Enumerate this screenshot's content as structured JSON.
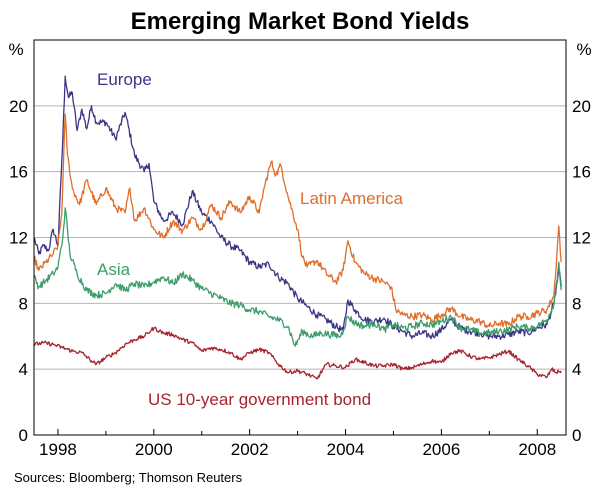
{
  "chart_data": {
    "type": "line",
    "title": "Emerging Market Bond Yields",
    "y_unit_left": "%",
    "y_unit_right": "%",
    "ylim": [
      0,
      24
    ],
    "yticks": [
      "0",
      "4",
      "8",
      "12",
      "16",
      "20"
    ],
    "xlim": [
      1997.5,
      2008.6
    ],
    "xticks": [
      {
        "value": 1998,
        "label": "1998"
      },
      {
        "value": 2000,
        "label": "2000"
      },
      {
        "value": 2002,
        "label": "2002"
      },
      {
        "value": 2004,
        "label": "2004"
      },
      {
        "value": 2006,
        "label": "2006"
      },
      {
        "value": 2008,
        "label": "2008"
      }
    ],
    "source": "Sources: Bloomberg; Thomson Reuters",
    "series": [
      {
        "name": "Europe",
        "color": "#3b3585",
        "points": [
          [
            1997.5,
            12.0
          ],
          [
            1997.6,
            11.0
          ],
          [
            1997.7,
            11.5
          ],
          [
            1997.8,
            11.2
          ],
          [
            1997.9,
            12.5
          ],
          [
            1998.0,
            11.5
          ],
          [
            1998.1,
            18.0
          ],
          [
            1998.15,
            21.8
          ],
          [
            1998.22,
            20.5
          ],
          [
            1998.3,
            20.8
          ],
          [
            1998.4,
            18.5
          ],
          [
            1998.5,
            19.8
          ],
          [
            1998.6,
            18.6
          ],
          [
            1998.7,
            20.0
          ],
          [
            1998.8,
            19.0
          ],
          [
            1999.0,
            19.0
          ],
          [
            1999.2,
            18.0
          ],
          [
            1999.4,
            19.6
          ],
          [
            1999.6,
            17.0
          ],
          [
            1999.8,
            16.0
          ],
          [
            1999.9,
            16.5
          ],
          [
            2000.0,
            14.2
          ],
          [
            2000.2,
            13.0
          ],
          [
            2000.4,
            13.5
          ],
          [
            2000.6,
            12.8
          ],
          [
            2000.8,
            14.8
          ],
          [
            2001.0,
            13.5
          ],
          [
            2001.2,
            13.0
          ],
          [
            2001.4,
            12.0
          ],
          [
            2001.6,
            11.5
          ],
          [
            2001.8,
            11.2
          ],
          [
            2002.0,
            10.5
          ],
          [
            2002.2,
            10.2
          ],
          [
            2002.4,
            10.4
          ],
          [
            2002.6,
            9.6
          ],
          [
            2002.8,
            9.2
          ],
          [
            2003.0,
            8.3
          ],
          [
            2003.2,
            7.8
          ],
          [
            2003.4,
            7.3
          ],
          [
            2003.6,
            7.0
          ],
          [
            2003.8,
            6.6
          ],
          [
            2003.95,
            6.3
          ],
          [
            2004.05,
            8.2
          ],
          [
            2004.2,
            7.6
          ],
          [
            2004.4,
            7.0
          ],
          [
            2004.6,
            6.9
          ],
          [
            2004.8,
            7.1
          ],
          [
            2005.0,
            6.6
          ],
          [
            2005.2,
            6.3
          ],
          [
            2005.4,
            6.0
          ],
          [
            2005.6,
            6.2
          ],
          [
            2005.8,
            6.0
          ],
          [
            2006.0,
            6.4
          ],
          [
            2006.2,
            7.0
          ],
          [
            2006.4,
            6.5
          ],
          [
            2006.6,
            6.3
          ],
          [
            2006.8,
            6.2
          ],
          [
            2007.0,
            6.0
          ],
          [
            2007.2,
            6.0
          ],
          [
            2007.4,
            6.1
          ],
          [
            2007.6,
            6.3
          ],
          [
            2007.8,
            6.2
          ],
          [
            2008.0,
            6.5
          ],
          [
            2008.2,
            6.7
          ],
          [
            2008.35,
            8.0
          ],
          [
            2008.45,
            10.0
          ],
          [
            2008.5,
            9.0
          ]
        ]
      },
      {
        "name": "Latin America",
        "color": "#e06e2c",
        "points": [
          [
            1997.5,
            10.8
          ],
          [
            1997.6,
            10.0
          ],
          [
            1997.75,
            10.5
          ],
          [
            1997.9,
            11.0
          ],
          [
            1998.0,
            11.5
          ],
          [
            1998.08,
            13.5
          ],
          [
            1998.15,
            19.5
          ],
          [
            1998.2,
            17.0
          ],
          [
            1998.3,
            15.0
          ],
          [
            1998.45,
            14.0
          ],
          [
            1998.6,
            15.5
          ],
          [
            1998.8,
            14.0
          ],
          [
            1999.0,
            15.0
          ],
          [
            1999.2,
            13.8
          ],
          [
            1999.4,
            13.5
          ],
          [
            1999.5,
            15.0
          ],
          [
            1999.6,
            13.0
          ],
          [
            1999.8,
            13.8
          ],
          [
            2000.0,
            12.5
          ],
          [
            2000.2,
            12.0
          ],
          [
            2000.4,
            13.0
          ],
          [
            2000.6,
            12.4
          ],
          [
            2000.8,
            13.2
          ],
          [
            2001.0,
            12.5
          ],
          [
            2001.2,
            14.0
          ],
          [
            2001.4,
            13.2
          ],
          [
            2001.6,
            14.2
          ],
          [
            2001.8,
            13.5
          ],
          [
            2002.0,
            14.5
          ],
          [
            2002.2,
            13.5
          ],
          [
            2002.3,
            15.0
          ],
          [
            2002.45,
            16.6
          ],
          [
            2002.55,
            15.8
          ],
          [
            2002.65,
            16.4
          ],
          [
            2002.8,
            14.5
          ],
          [
            2003.0,
            12.5
          ],
          [
            2003.1,
            10.8
          ],
          [
            2003.2,
            10.2
          ],
          [
            2003.4,
            10.6
          ],
          [
            2003.6,
            9.8
          ],
          [
            2003.8,
            9.3
          ],
          [
            2003.95,
            10.0
          ],
          [
            2004.05,
            11.8
          ],
          [
            2004.2,
            10.5
          ],
          [
            2004.4,
            9.8
          ],
          [
            2004.6,
            9.5
          ],
          [
            2004.8,
            9.3
          ],
          [
            2004.95,
            9.0
          ],
          [
            2005.05,
            7.6
          ],
          [
            2005.2,
            7.3
          ],
          [
            2005.4,
            7.2
          ],
          [
            2005.6,
            7.3
          ],
          [
            2005.8,
            7.0
          ],
          [
            2006.0,
            7.3
          ],
          [
            2006.2,
            7.7
          ],
          [
            2006.4,
            7.2
          ],
          [
            2006.6,
            7.0
          ],
          [
            2006.8,
            6.9
          ],
          [
            2007.0,
            6.6
          ],
          [
            2007.2,
            6.8
          ],
          [
            2007.4,
            6.7
          ],
          [
            2007.6,
            7.2
          ],
          [
            2007.8,
            7.2
          ],
          [
            2008.0,
            7.4
          ],
          [
            2008.2,
            7.6
          ],
          [
            2008.35,
            8.5
          ],
          [
            2008.45,
            12.7
          ],
          [
            2008.5,
            10.5
          ]
        ]
      },
      {
        "name": "Asia",
        "color": "#3d9e6a",
        "points": [
          [
            1997.5,
            9.6
          ],
          [
            1997.6,
            9.0
          ],
          [
            1997.75,
            9.4
          ],
          [
            1997.9,
            9.8
          ],
          [
            1998.0,
            10.2
          ],
          [
            1998.1,
            12.0
          ],
          [
            1998.15,
            13.8
          ],
          [
            1998.25,
            11.0
          ],
          [
            1998.4,
            9.8
          ],
          [
            1998.6,
            8.8
          ],
          [
            1998.8,
            8.5
          ],
          [
            1999.0,
            8.6
          ],
          [
            1999.2,
            9.2
          ],
          [
            1999.4,
            8.8
          ],
          [
            1999.6,
            9.2
          ],
          [
            1999.8,
            9.0
          ],
          [
            2000.0,
            9.3
          ],
          [
            2000.2,
            9.6
          ],
          [
            2000.4,
            9.2
          ],
          [
            2000.6,
            9.8
          ],
          [
            2000.8,
            9.4
          ],
          [
            2001.0,
            8.9
          ],
          [
            2001.2,
            8.6
          ],
          [
            2001.4,
            8.3
          ],
          [
            2001.6,
            8.0
          ],
          [
            2001.8,
            7.9
          ],
          [
            2002.0,
            7.6
          ],
          [
            2002.2,
            7.5
          ],
          [
            2002.4,
            7.2
          ],
          [
            2002.6,
            7.0
          ],
          [
            2002.8,
            6.6
          ],
          [
            2002.95,
            5.4
          ],
          [
            2003.1,
            6.3
          ],
          [
            2003.3,
            6.0
          ],
          [
            2003.5,
            6.2
          ],
          [
            2003.7,
            6.1
          ],
          [
            2003.9,
            6.0
          ],
          [
            2004.05,
            7.2
          ],
          [
            2004.2,
            6.8
          ],
          [
            2004.4,
            6.6
          ],
          [
            2004.6,
            6.8
          ],
          [
            2004.8,
            6.4
          ],
          [
            2005.0,
            6.7
          ],
          [
            2005.2,
            6.5
          ],
          [
            2005.4,
            6.6
          ],
          [
            2005.6,
            6.8
          ],
          [
            2005.8,
            6.7
          ],
          [
            2006.0,
            6.9
          ],
          [
            2006.2,
            7.2
          ],
          [
            2006.4,
            6.5
          ],
          [
            2006.6,
            6.4
          ],
          [
            2006.8,
            6.2
          ],
          [
            2007.0,
            6.2
          ],
          [
            2007.2,
            6.3
          ],
          [
            2007.4,
            6.4
          ],
          [
            2007.6,
            6.6
          ],
          [
            2007.8,
            6.5
          ],
          [
            2008.0,
            6.6
          ],
          [
            2008.2,
            7.0
          ],
          [
            2008.35,
            8.0
          ],
          [
            2008.45,
            10.5
          ],
          [
            2008.5,
            8.8
          ]
        ]
      },
      {
        "name": "US 10-year government bond",
        "color": "#a7242e",
        "points": [
          [
            1997.5,
            5.5
          ],
          [
            1997.7,
            5.6
          ],
          [
            1997.9,
            5.5
          ],
          [
            1998.1,
            5.3
          ],
          [
            1998.3,
            5.1
          ],
          [
            1998.5,
            5.0
          ],
          [
            1998.7,
            4.5
          ],
          [
            1998.8,
            4.3
          ],
          [
            1999.0,
            4.7
          ],
          [
            1999.2,
            5.0
          ],
          [
            1999.4,
            5.5
          ],
          [
            1999.6,
            5.8
          ],
          [
            1999.8,
            6.0
          ],
          [
            2000.0,
            6.5
          ],
          [
            2000.2,
            6.2
          ],
          [
            2000.4,
            6.1
          ],
          [
            2000.6,
            5.8
          ],
          [
            2000.8,
            5.6
          ],
          [
            2001.0,
            5.1
          ],
          [
            2001.2,
            5.3
          ],
          [
            2001.4,
            5.2
          ],
          [
            2001.6,
            5.0
          ],
          [
            2001.8,
            4.6
          ],
          [
            2002.0,
            5.0
          ],
          [
            2002.2,
            5.2
          ],
          [
            2002.4,
            5.0
          ],
          [
            2002.6,
            4.3
          ],
          [
            2002.8,
            3.8
          ],
          [
            2003.0,
            3.9
          ],
          [
            2003.2,
            3.7
          ],
          [
            2003.4,
            3.4
          ],
          [
            2003.6,
            4.3
          ],
          [
            2003.8,
            4.2
          ],
          [
            2004.0,
            4.1
          ],
          [
            2004.2,
            4.6
          ],
          [
            2004.4,
            4.4
          ],
          [
            2004.6,
            4.2
          ],
          [
            2004.8,
            4.2
          ],
          [
            2005.0,
            4.3
          ],
          [
            2005.2,
            4.0
          ],
          [
            2005.4,
            4.1
          ],
          [
            2005.6,
            4.3
          ],
          [
            2005.8,
            4.5
          ],
          [
            2006.0,
            4.4
          ],
          [
            2006.2,
            5.0
          ],
          [
            2006.4,
            5.1
          ],
          [
            2006.6,
            4.8
          ],
          [
            2006.8,
            4.6
          ],
          [
            2007.0,
            4.7
          ],
          [
            2007.2,
            4.9
          ],
          [
            2007.4,
            5.1
          ],
          [
            2007.6,
            4.6
          ],
          [
            2007.8,
            4.2
          ],
          [
            2008.0,
            3.7
          ],
          [
            2008.2,
            3.5
          ],
          [
            2008.3,
            4.0
          ],
          [
            2008.4,
            3.8
          ],
          [
            2008.5,
            3.9
          ]
        ]
      }
    ]
  }
}
